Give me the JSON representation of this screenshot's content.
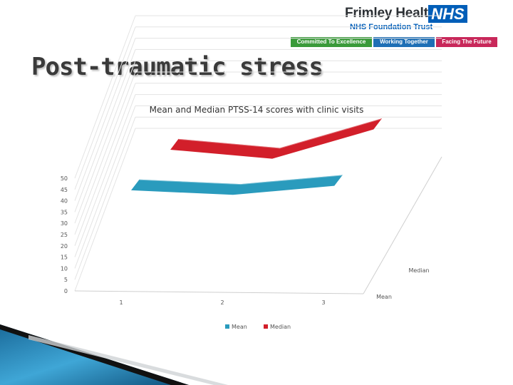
{
  "logo": {
    "org_name": "Frimley Health",
    "badge": "NHS",
    "subtitle": "NHS Foundation Trust",
    "values": [
      {
        "label": "Committed To Excellence",
        "color": "#3a9a3a"
      },
      {
        "label": "Working Together",
        "color": "#1f6fb5"
      },
      {
        "label": "Facing The Future",
        "color": "#c8285a"
      }
    ],
    "brand_color": "#005eb8"
  },
  "slide": {
    "title": "Post-traumatic stress"
  },
  "chart_data": {
    "type": "line",
    "style": "3d-ribbon",
    "title": "Mean and Median PTSS-14 scores with clinic visits",
    "categories": [
      "1",
      "2",
      "3"
    ],
    "series": [
      {
        "name": "Mean",
        "values": [
          47,
          45,
          49
        ],
        "color": "#2a9bbd"
      },
      {
        "name": "Median",
        "values": [
          53,
          49,
          62
        ],
        "color": "#d21f2a"
      }
    ],
    "depth_axis_labels": [
      "Mean",
      "Median"
    ],
    "y_ticks": [
      "0",
      "5",
      "10",
      "15",
      "20",
      "25",
      "30",
      "35",
      "40",
      "45",
      "50"
    ],
    "ylim": [
      0,
      50
    ],
    "xlabel": "",
    "ylabel": "",
    "grid": true,
    "legend": {
      "position": "bottom",
      "entries": [
        "Mean",
        "Median"
      ]
    }
  }
}
